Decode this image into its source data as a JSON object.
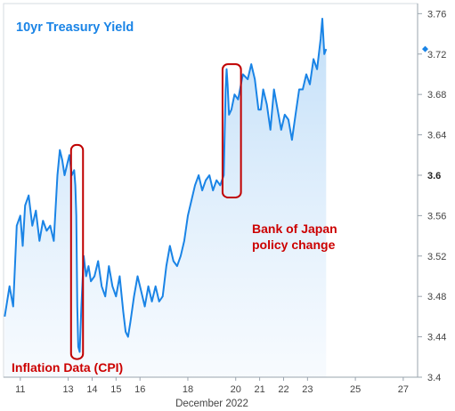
{
  "chart_data": {
    "type": "line",
    "title": "10yr Treasury Yield",
    "xlabel": "December 2022",
    "ylabel": "",
    "xlim": [
      10.3,
      27.6
    ],
    "ylim": [
      3.4,
      3.77
    ],
    "x_ticks": [
      {
        "value": 11,
        "label": "11"
      },
      {
        "value": 13,
        "label": "13"
      },
      {
        "value": 14,
        "label": "14"
      },
      {
        "value": 15,
        "label": "15"
      },
      {
        "value": 16,
        "label": "16"
      },
      {
        "value": 18,
        "label": "18"
      },
      {
        "value": 20,
        "label": "20"
      },
      {
        "value": 21,
        "label": "21"
      },
      {
        "value": 22,
        "label": "22"
      },
      {
        "value": 23,
        "label": "23"
      },
      {
        "value": 25,
        "label": "25"
      },
      {
        "value": 27,
        "label": "27"
      }
    ],
    "y_ticks": [
      {
        "value": 3.76,
        "label": "3.76"
      },
      {
        "value": 3.72,
        "label": "3.72"
      },
      {
        "value": 3.68,
        "label": "3.68"
      },
      {
        "value": 3.64,
        "label": "3.64"
      },
      {
        "value": 3.6,
        "label": "3.6",
        "bold": true
      },
      {
        "value": 3.56,
        "label": "3.56"
      },
      {
        "value": 3.52,
        "label": "3.52"
      },
      {
        "value": 3.48,
        "label": "3.48"
      },
      {
        "value": 3.44,
        "label": "3.44"
      },
      {
        "value": 3.4,
        "label": "3.4"
      }
    ],
    "series": [
      {
        "color": "#1a84e6",
        "x": [
          10.35,
          10.45,
          10.55,
          10.7,
          10.85,
          11.0,
          11.1,
          11.2,
          11.35,
          11.5,
          11.65,
          11.8,
          11.95,
          12.1,
          12.25,
          12.4,
          12.55,
          12.65,
          12.75,
          12.85,
          12.95,
          13.05,
          13.15,
          13.25,
          13.3,
          13.34,
          13.38,
          13.42,
          13.48,
          13.55,
          13.65,
          13.75,
          13.85,
          13.95,
          14.1,
          14.25,
          14.4,
          14.55,
          14.7,
          14.85,
          15.0,
          15.15,
          15.3,
          15.4,
          15.5,
          15.6,
          15.75,
          15.9,
          16.05,
          16.2,
          16.35,
          16.5,
          16.65,
          16.8,
          16.95,
          17.1,
          17.25,
          17.4,
          17.55,
          17.7,
          17.85,
          18.0,
          18.15,
          18.3,
          18.45,
          18.6,
          18.75,
          18.9,
          19.05,
          19.2,
          19.35,
          19.5,
          19.58,
          19.62,
          19.66,
          19.72,
          19.82,
          19.95,
          20.1,
          20.3,
          20.5,
          20.65,
          20.8,
          20.95,
          21.05,
          21.15,
          21.3,
          21.45,
          21.6,
          21.75,
          21.9,
          22.05,
          22.2,
          22.35,
          22.5,
          22.65,
          22.8,
          22.95,
          23.1,
          23.25,
          23.4,
          23.55,
          23.62,
          23.7,
          23.78
        ],
        "values": [
          3.46,
          3.475,
          3.49,
          3.47,
          3.55,
          3.56,
          3.53,
          3.57,
          3.58,
          3.55,
          3.565,
          3.535,
          3.555,
          3.545,
          3.55,
          3.535,
          3.6,
          3.625,
          3.615,
          3.6,
          3.61,
          3.62,
          3.6,
          3.605,
          3.59,
          3.56,
          3.47,
          3.43,
          3.425,
          3.47,
          3.52,
          3.5,
          3.51,
          3.495,
          3.5,
          3.515,
          3.49,
          3.48,
          3.51,
          3.49,
          3.48,
          3.5,
          3.465,
          3.445,
          3.44,
          3.455,
          3.48,
          3.5,
          3.485,
          3.47,
          3.49,
          3.475,
          3.49,
          3.475,
          3.48,
          3.51,
          3.53,
          3.515,
          3.51,
          3.52,
          3.535,
          3.56,
          3.575,
          3.59,
          3.6,
          3.585,
          3.595,
          3.6,
          3.585,
          3.595,
          3.59,
          3.6,
          3.685,
          3.705,
          3.69,
          3.66,
          3.665,
          3.68,
          3.675,
          3.7,
          3.695,
          3.71,
          3.695,
          3.665,
          3.665,
          3.685,
          3.67,
          3.645,
          3.685,
          3.665,
          3.645,
          3.66,
          3.655,
          3.635,
          3.66,
          3.685,
          3.685,
          3.7,
          3.69,
          3.715,
          3.705,
          3.735,
          3.755,
          3.72,
          3.725
        ]
      }
    ],
    "last_value": 3.725,
    "annotations": [
      {
        "text": "Inflation Data (CPI)",
        "color": "#cc0000"
      },
      {
        "text_lines": [
          "Bank of Japan",
          "policy change"
        ],
        "color": "#cc0000"
      }
    ],
    "highlight_boxes": [
      {
        "x_range": [
          13.12,
          13.62
        ],
        "y_range": [
          3.418,
          3.63
        ],
        "color": "#c00000"
      },
      {
        "x_range": [
          19.45,
          20.22
        ],
        "y_range": [
          3.578,
          3.71
        ],
        "color": "#c00000"
      }
    ],
    "colors": {
      "line": "#1a84e6",
      "fill_top": "#b7d9f7",
      "fill_bottom": "#f2f8fe",
      "title": "#1a84e6",
      "annotation": "#cc0000",
      "box": "#c00000",
      "axis": "#9aa4ae"
    },
    "grid": false,
    "legend": "none"
  }
}
